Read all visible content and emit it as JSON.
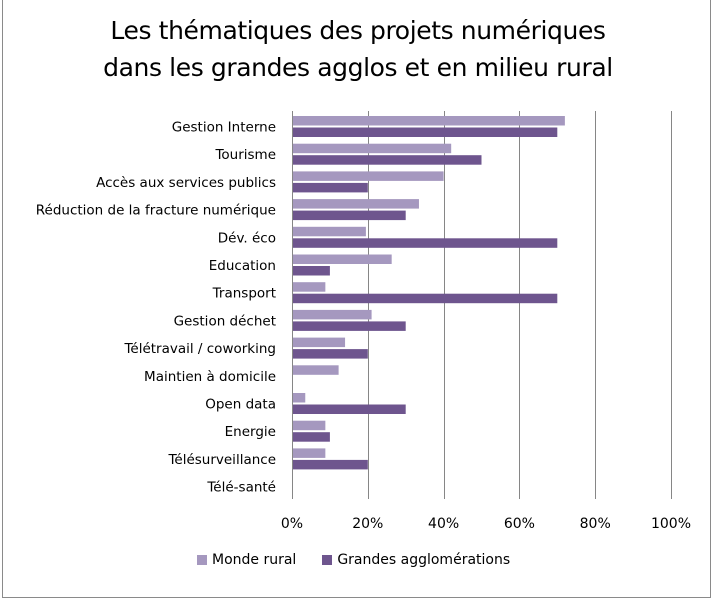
{
  "chart_data": {
    "type": "bar",
    "orientation": "horizontal",
    "title": "Les thématiques des projets numériques dans les grandes agglos et en milieu rural",
    "title_lines": [
      "Les thématiques des projets numériques",
      "dans les grandes agglos et en milieu rural"
    ],
    "xlabel": "",
    "ylabel": "",
    "xlim": [
      0,
      100
    ],
    "x_ticks": [
      "0%",
      "20%",
      "40%",
      "60%",
      "80%",
      "100%"
    ],
    "x_tick_values": [
      0,
      20,
      40,
      60,
      80,
      100
    ],
    "grid": true,
    "legend_position": "bottom",
    "categories": [
      "Gestion Interne",
      "Tourisme",
      "Accès aux services publics",
      "Réduction de la fracture numérique",
      "Dév. éco",
      "Education",
      "Transport",
      "Gestion déchet",
      "Télétravail / coworking",
      "Maintien à domicile",
      "Open data",
      "Energie",
      "Télésurveillance",
      "Télé-santé"
    ],
    "series": [
      {
        "name": "Monde rural",
        "color": "#A598BF",
        "values": [
          72,
          42,
          40,
          33.5,
          19.5,
          26.3,
          8.8,
          21,
          14,
          12.3,
          3.5,
          8.8,
          8.8,
          0
        ]
      },
      {
        "name": "Grandes agglomérations",
        "color": "#6E558E",
        "values": [
          70,
          50,
          20,
          30,
          70,
          10,
          70,
          30,
          20,
          0,
          30,
          10,
          20,
          0
        ]
      }
    ]
  }
}
